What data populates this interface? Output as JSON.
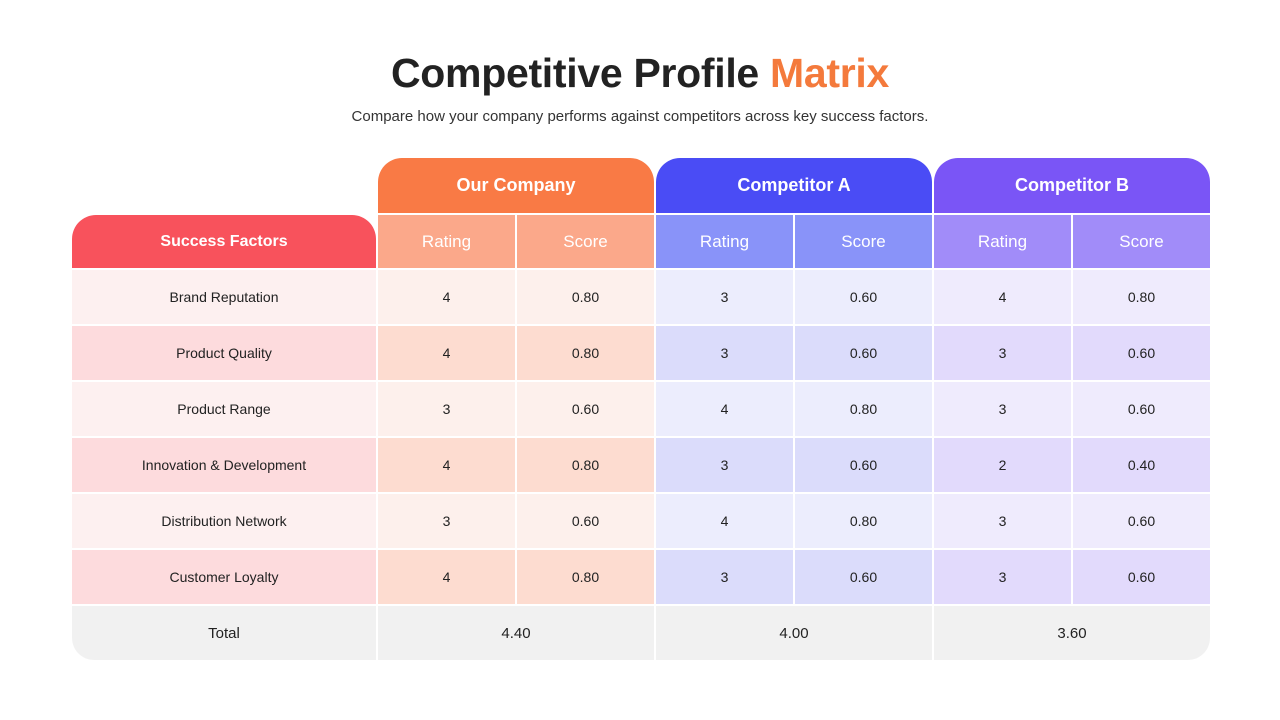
{
  "title": {
    "main": "Competitive Profile",
    "accent": "Matrix"
  },
  "subtitle": "Compare how your company performs against competitors across key success factors.",
  "table": {
    "factor_header": "Success Factors",
    "companies": [
      {
        "name": "Our Company",
        "rating_label": "Rating",
        "score_label": "Score",
        "header_color": "#f97a45",
        "sub_color": "#fba88a",
        "row_light": "#fdf0ec",
        "row_dark": "#fddcd0",
        "total": "4.40"
      },
      {
        "name": "Competitor A",
        "rating_label": "Rating",
        "score_label": "Score",
        "header_color": "#4a4cf5",
        "sub_color": "#8993f9",
        "row_light": "#ecedfd",
        "row_dark": "#dbdcfb",
        "total": "4.00"
      },
      {
        "name": "Competitor B",
        "rating_label": "Rating",
        "score_label": "Score",
        "header_color": "#7a55f6",
        "sub_color": "#a18cf9",
        "row_light": "#efebfd",
        "row_dark": "#e2dafc",
        "total": "3.60"
      }
    ],
    "factor_colors": {
      "header": "#f8525c",
      "row_light": "#fdf0f0",
      "row_dark": "#fddbdd"
    },
    "rows": [
      {
        "factor": "Brand Reputation",
        "values": [
          "4",
          "0.80",
          "3",
          "0.60",
          "4",
          "0.80"
        ]
      },
      {
        "factor": "Product Quality",
        "values": [
          "4",
          "0.80",
          "3",
          "0.60",
          "3",
          "0.60"
        ]
      },
      {
        "factor": "Product Range",
        "values": [
          "3",
          "0.60",
          "4",
          "0.80",
          "3",
          "0.60"
        ]
      },
      {
        "factor": "Innovation & Development",
        "values": [
          "4",
          "0.80",
          "3",
          "0.60",
          "2",
          "0.40"
        ]
      },
      {
        "factor": "Distribution Network",
        "values": [
          "3",
          "0.60",
          "4",
          "0.80",
          "3",
          "0.60"
        ]
      },
      {
        "factor": "Customer Loyalty",
        "values": [
          "4",
          "0.80",
          "3",
          "0.60",
          "3",
          "0.60"
        ]
      }
    ],
    "total_label": "Total"
  }
}
